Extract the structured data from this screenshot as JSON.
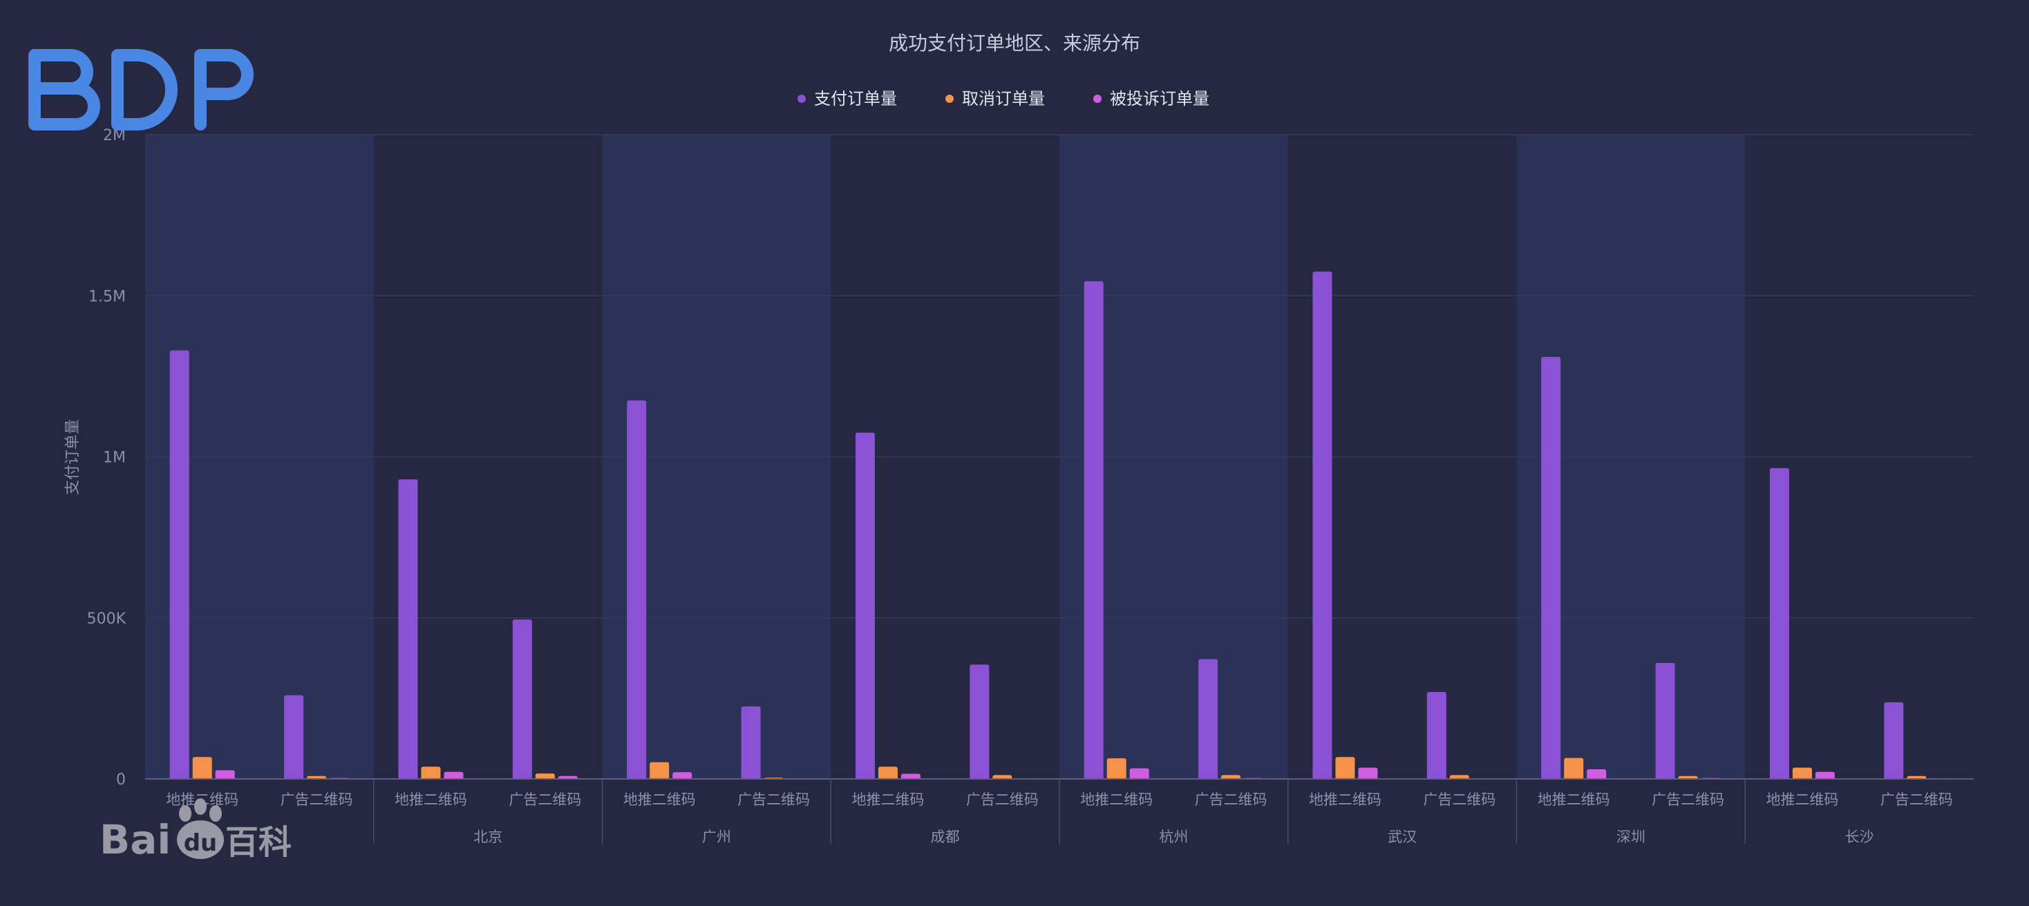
{
  "watermarks": {
    "top_left": "BDP",
    "bottom_left_text": "Bai",
    "bottom_left_paw": "du",
    "bottom_left_suffix": "百科"
  },
  "colors": {
    "background": "#252840",
    "band": "#2b3157",
    "axis_text": "#8c91aa",
    "title_text": "#c9ccdc",
    "grid": "#363a56",
    "series": [
      "#8b52d6",
      "#f5934c",
      "#cf5fe0"
    ],
    "bdp_logo": "#4a86e3",
    "baidu_logo": "#9a9aa6"
  },
  "chart_data": {
    "type": "bar",
    "title": "成功支付订单地区、来源分布",
    "ylabel": "支付订单量",
    "xlabel": "",
    "ylim": [
      0,
      2000000
    ],
    "yticks": [
      {
        "value": 0,
        "label": "0"
      },
      {
        "value": 500000,
        "label": "500K"
      },
      {
        "value": 1000000,
        "label": "1M"
      },
      {
        "value": 1500000,
        "label": "1.5M"
      },
      {
        "value": 2000000,
        "label": "2M"
      }
    ],
    "legend_position": "top-center",
    "grid": true,
    "groups": [
      "",
      "北京",
      "广州",
      "成都",
      "杭州",
      "武汉",
      "深圳",
      "长沙"
    ],
    "subcategories": [
      "地推二维码",
      "广告二维码"
    ],
    "series": [
      {
        "name": "支付订单量",
        "values": [
          1330000,
          260000,
          930000,
          495000,
          1175000,
          225000,
          1075000,
          355000,
          1545000,
          372000,
          1575000,
          270000,
          1310000,
          360000,
          965000,
          238000
        ]
      },
      {
        "name": "取消订单量",
        "values": [
          68000,
          9000,
          38000,
          17000,
          52000,
          4000,
          38000,
          12000,
          64000,
          12000,
          68000,
          12000,
          65000,
          9000,
          35000,
          9000
        ]
      },
      {
        "name": "被投诉订单量",
        "values": [
          27000,
          3000,
          22000,
          9000,
          21000,
          2000,
          16000,
          1000,
          33000,
          3000,
          35000,
          1000,
          30000,
          3000,
          22000,
          1000
        ]
      }
    ]
  }
}
